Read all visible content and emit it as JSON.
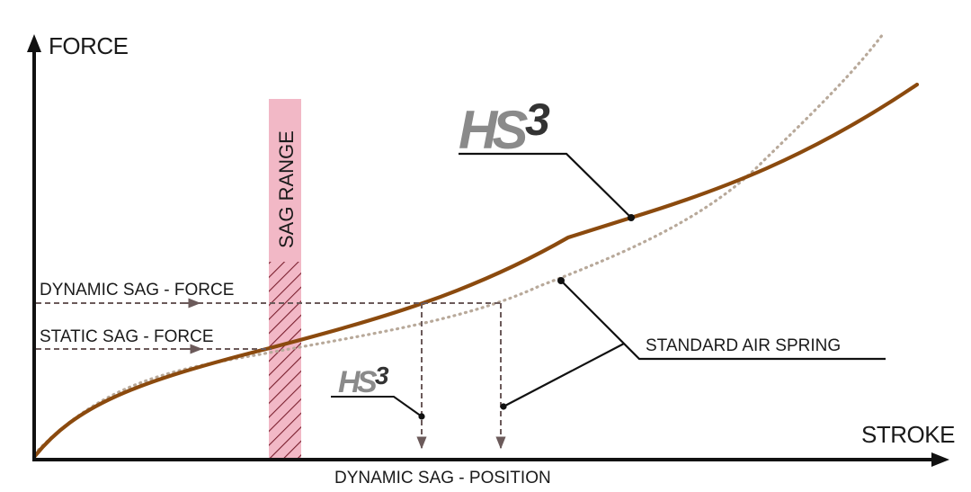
{
  "y_axis_label": "FORCE",
  "x_axis_label": "STROKE",
  "sag_range_label": "SAG RANGE",
  "dynamic_sag_force_label": "DYNAMIC SAG - FORCE",
  "static_sag_force_label": "STATIC SAG - FORCE",
  "dynamic_sag_position_label": "DYNAMIC SAG - POSITION",
  "standard_air_spring_label": "STANDARD AIR SPRING",
  "hs3_logo_large": {
    "prefix": "HS",
    "superscript": "3"
  },
  "hs3_logo_small": {
    "prefix": "HS",
    "superscript": "3"
  },
  "colors": {
    "hs3_curve": "#8b4a0e",
    "standard_curve": "#b8a99a",
    "sag_band": "#f2b8c6",
    "hatch": "#7a1f2e",
    "guide_lines": "#6b5a5a",
    "logo_grey": "#8a8a8a",
    "logo_dark": "#333333",
    "axis": "#111111"
  }
}
